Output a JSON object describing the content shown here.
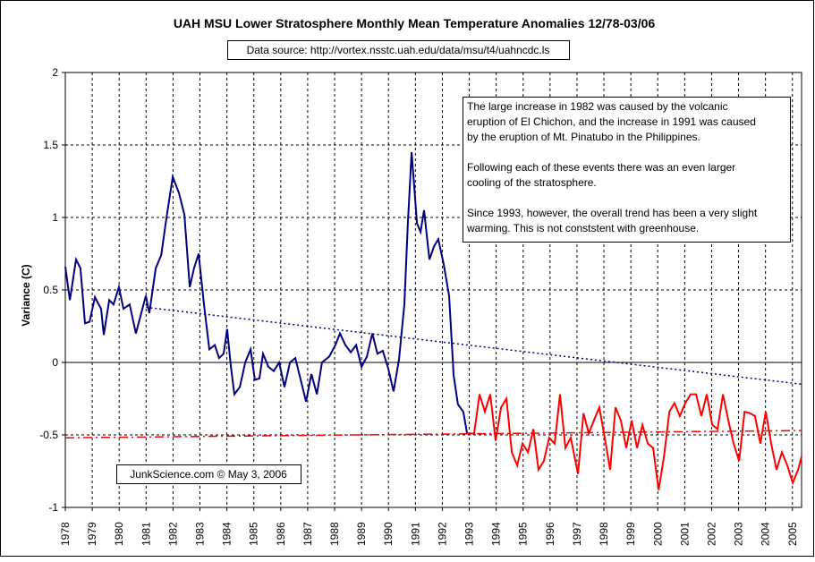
{
  "chart_data": {
    "type": "line",
    "title": "UAH MSU Lower Stratosphere Monthly Mean Temperature Anomalies 12/78-03/06",
    "subtitle": "Data source: http://vortex.nsstc.uah.edu/data/msu/t4/uahncdc.ls",
    "y_label": "Variance (C)",
    "watermark": "JunkScience.com ©  May 3, 2006",
    "annotation": [
      [
        "The large increase in 1982 was caused by the volcanic",
        "eruption of El Chichon, and the increase in 1991 was caused",
        "by the eruption of Mt. Pinatubo in the Philippines."
      ],
      [
        "Following each of these events there was an even larger",
        "cooling of the stratosphere."
      ],
      [
        "Since 1993, however, the overall trend has been a very slight",
        "warming. This is not conststent with greenhouse."
      ]
    ],
    "xlim": [
      1978,
      2005.34
    ],
    "xticks": [
      1978,
      1979,
      1980,
      1981,
      1982,
      1983,
      1984,
      1985,
      1986,
      1987,
      1988,
      1989,
      1990,
      1991,
      1992,
      1993,
      1994,
      1995,
      1996,
      1997,
      1998,
      1999,
      2000,
      2001,
      2002,
      2003,
      2004,
      2005
    ],
    "ylim": [
      -1,
      2
    ],
    "yticks": [
      2,
      1.5,
      1,
      0.5,
      0,
      -0.5,
      -1
    ],
    "grid": true,
    "series": [
      {
        "color": "#000080",
        "style": "solid",
        "x": [
          1978,
          1978.17,
          1978.4,
          1978.56,
          1978.73,
          1978.9,
          1979.1,
          1979.33,
          1979.43,
          1979.63,
          1979.79,
          1979.99,
          1980.16,
          1980.39,
          1980.62,
          1980.82,
          1980.99,
          1981.12,
          1981.36,
          1981.56,
          1981.75,
          1981.99,
          1982.22,
          1982.42,
          1982.62,
          1982.78,
          1982.95,
          1983.15,
          1983.35,
          1983.55,
          1983.71,
          1983.88,
          1984.01,
          1984.15,
          1984.28,
          1984.48,
          1984.68,
          1984.88,
          1985.04,
          1985.21,
          1985.34,
          1985.54,
          1985.74,
          1985.94,
          1986.14,
          1986.34,
          1986.54,
          1986.74,
          1986.94,
          1987.14,
          1987.34,
          1987.53,
          1987.8,
          1988.03,
          1988.2,
          1988.4,
          1988.6,
          1988.8,
          1989,
          1989.2,
          1989.4,
          1989.59,
          1989.79,
          1989.99,
          1990.19,
          1990.39,
          1990.59,
          1990.72,
          1990.86,
          1991.06,
          1991.19,
          1991.32,
          1991.52,
          1991.69,
          1991.85,
          1992.05,
          1992.25,
          1992.42,
          1992.58,
          1992.78,
          1992.92
        ],
        "values": [
          0.66,
          0.43,
          0.71,
          0.65,
          0.27,
          0.28,
          0.45,
          0.37,
          0.19,
          0.43,
          0.4,
          0.52,
          0.37,
          0.4,
          0.2,
          0.34,
          0.46,
          0.34,
          0.65,
          0.74,
          0.99,
          1.28,
          1.17,
          1.02,
          0.52,
          0.65,
          0.75,
          0.4,
          0.09,
          0.12,
          0.03,
          0.06,
          0.23,
          -0.03,
          -0.22,
          -0.17,
          0,
          0.09,
          -0.12,
          -0.11,
          0.06,
          -0.03,
          -0.06,
          0,
          -0.17,
          0,
          0.03,
          -0.12,
          -0.27,
          -0.08,
          -0.22,
          0,
          0.04,
          0.12,
          0.2,
          0.12,
          0.07,
          0.12,
          -0.03,
          0.04,
          0.2,
          0.06,
          0.08,
          -0.04,
          -0.2,
          0.02,
          0.4,
          0.96,
          1.45,
          0.96,
          0.9,
          1.05,
          0.71,
          0.8,
          0.85,
          0.68,
          0.46,
          -0.09,
          -0.29,
          -0.34,
          -0.49
        ]
      },
      {
        "color": "#ff0000",
        "style": "solid",
        "x": [
          1992.92,
          1993.18,
          1993.38,
          1993.58,
          1993.78,
          1993.98,
          1994.18,
          1994.38,
          1994.58,
          1994.78,
          1994.98,
          1995.18,
          1995.38,
          1995.57,
          1995.77,
          1995.97,
          1996.17,
          1996.37,
          1996.57,
          1996.77,
          1997.04,
          1997.24,
          1997.44,
          1997.63,
          1997.83,
          1998.03,
          1998.23,
          1998.43,
          1998.63,
          1998.83,
          1999.03,
          1999.23,
          1999.43,
          1999.63,
          1999.83,
          2000.03,
          2000.23,
          2000.43,
          2000.62,
          2000.82,
          2001.02,
          2001.22,
          2001.42,
          2001.62,
          2001.82,
          2002.02,
          2002.22,
          2002.42,
          2002.62,
          2002.82,
          2003.02,
          2003.22,
          2003.42,
          2003.61,
          2003.81,
          2004.01,
          2004.21,
          2004.41,
          2004.61,
          2004.81,
          2005.01,
          2005.21,
          2005.34
        ],
        "values": [
          -0.49,
          -0.49,
          -0.22,
          -0.34,
          -0.22,
          -0.54,
          -0.31,
          -0.25,
          -0.62,
          -0.71,
          -0.56,
          -0.62,
          -0.46,
          -0.74,
          -0.68,
          -0.52,
          -0.56,
          -0.22,
          -0.59,
          -0.52,
          -0.77,
          -0.35,
          -0.49,
          -0.4,
          -0.31,
          -0.52,
          -0.74,
          -0.31,
          -0.4,
          -0.59,
          -0.4,
          -0.59,
          -0.43,
          -0.56,
          -0.59,
          -0.88,
          -0.65,
          -0.34,
          -0.28,
          -0.37,
          -0.28,
          -0.22,
          -0.22,
          -0.37,
          -0.22,
          -0.43,
          -0.46,
          -0.22,
          -0.4,
          -0.56,
          -0.68,
          -0.34,
          -0.35,
          -0.37,
          -0.56,
          -0.34,
          -0.56,
          -0.74,
          -0.62,
          -0.71,
          -0.83,
          -0.74,
          -0.65
        ]
      },
      {
        "color": "#000080",
        "style": "dotted",
        "x": [
          1981,
          2005.34
        ],
        "values": [
          0.38,
          -0.15
        ]
      },
      {
        "color": "#ff0000",
        "style": "dashdot",
        "x": [
          1978,
          2005.34
        ],
        "values": [
          -0.52,
          -0.47
        ]
      }
    ]
  }
}
